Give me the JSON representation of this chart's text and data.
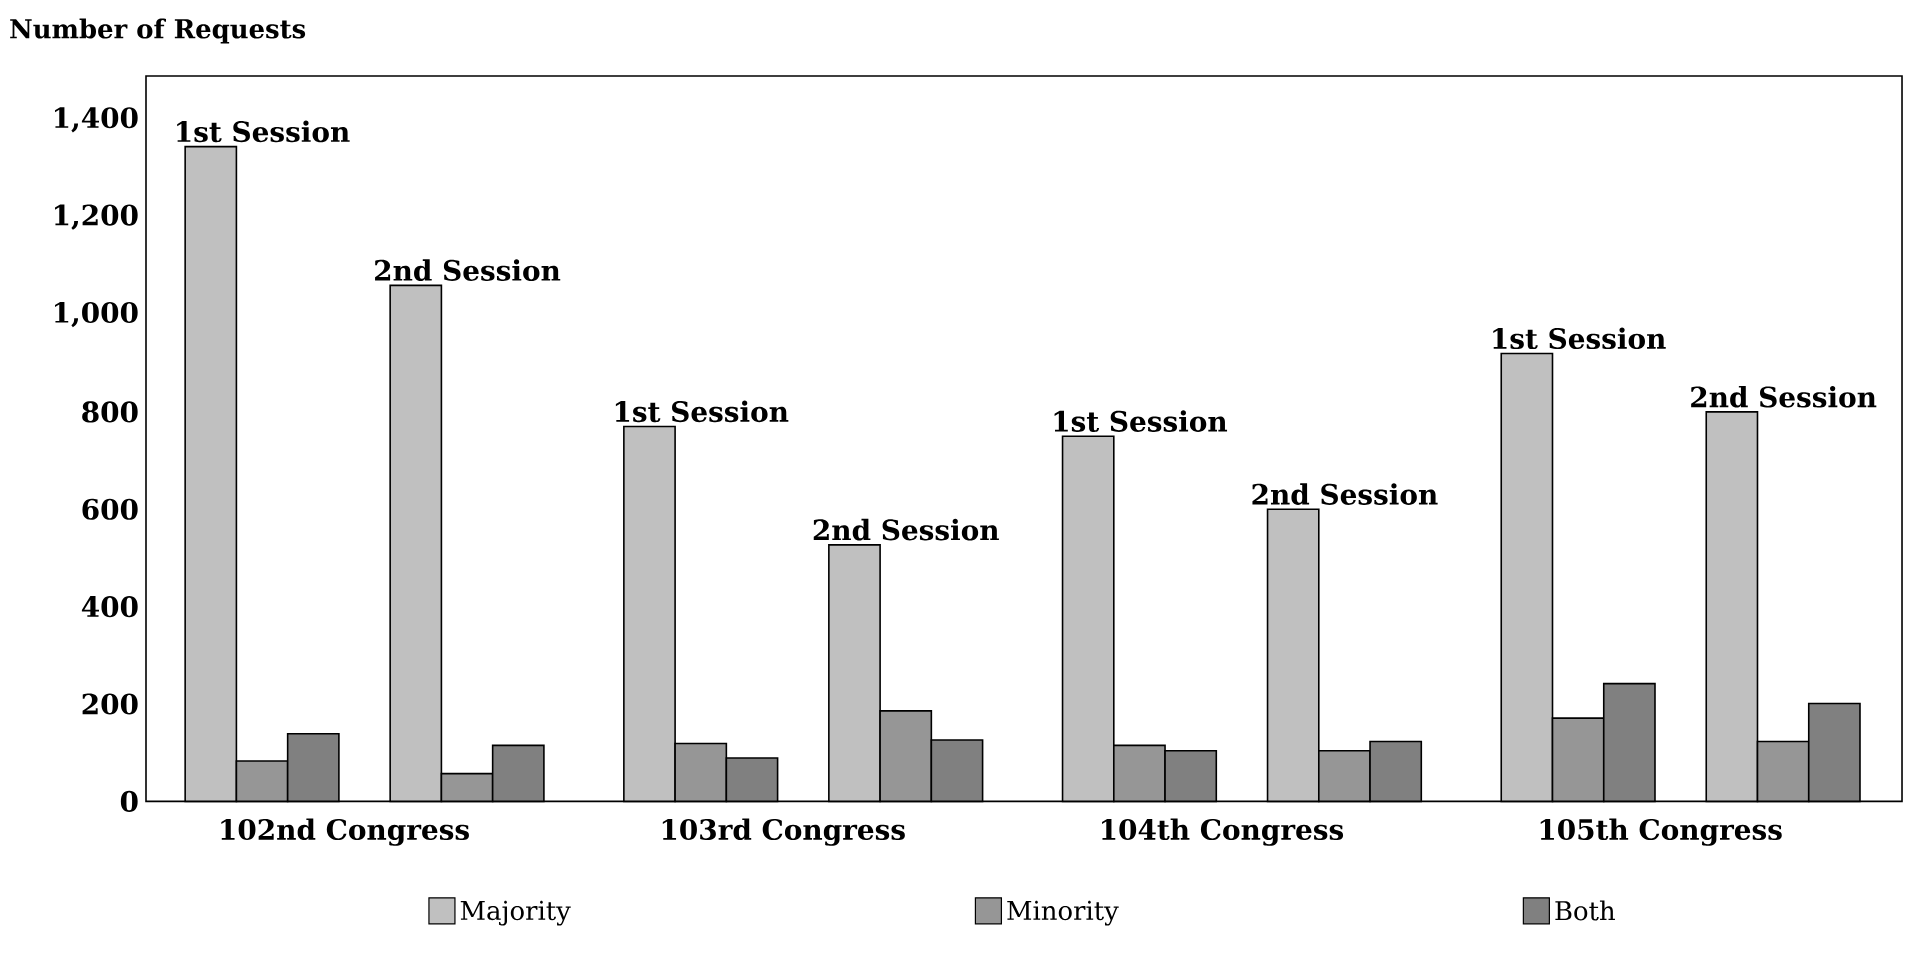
{
  "chart_data": {
    "type": "bar",
    "ylabel": "Number of Requests",
    "categories": [
      null,
      null,
      null,
      null,
      null,
      null,
      null,
      null
    ],
    "series": [
      {
        "name": "Majority",
        "color": "#c0c0c0",
        "values": [
          1345,
          1060,
          770,
          527,
          750,
          600,
          920,
          800
        ]
      },
      {
        "name": "Minority",
        "color": "#969696",
        "values": [
          83,
          57,
          119,
          186,
          115,
          104,
          171,
          123
        ]
      },
      {
        "name": "Both",
        "color": "#808080",
        "values": [
          139,
          115,
          89,
          126,
          104,
          123,
          242,
          201
        ]
      }
    ],
    "ylim": [
      0,
      1490
    ],
    "yticks": [
      0,
      200,
      400,
      600,
      800,
      {
        "value": 1000,
        "label": "1,000"
      },
      {
        "value": 1200,
        "label": "1,200"
      },
      {
        "value": 1400,
        "label": "1,400"
      }
    ],
    "legend": "bottom",
    "grid": false,
    "annotations": [
      "1st Session",
      "2nd Session",
      "1st Session",
      "2nd Session",
      "1st Session",
      "2nd Session",
      "1st Session",
      "2nd Session",
      "102nd Congress",
      "103rd Congress",
      "104th Congress",
      "105th Congress"
    ]
  }
}
